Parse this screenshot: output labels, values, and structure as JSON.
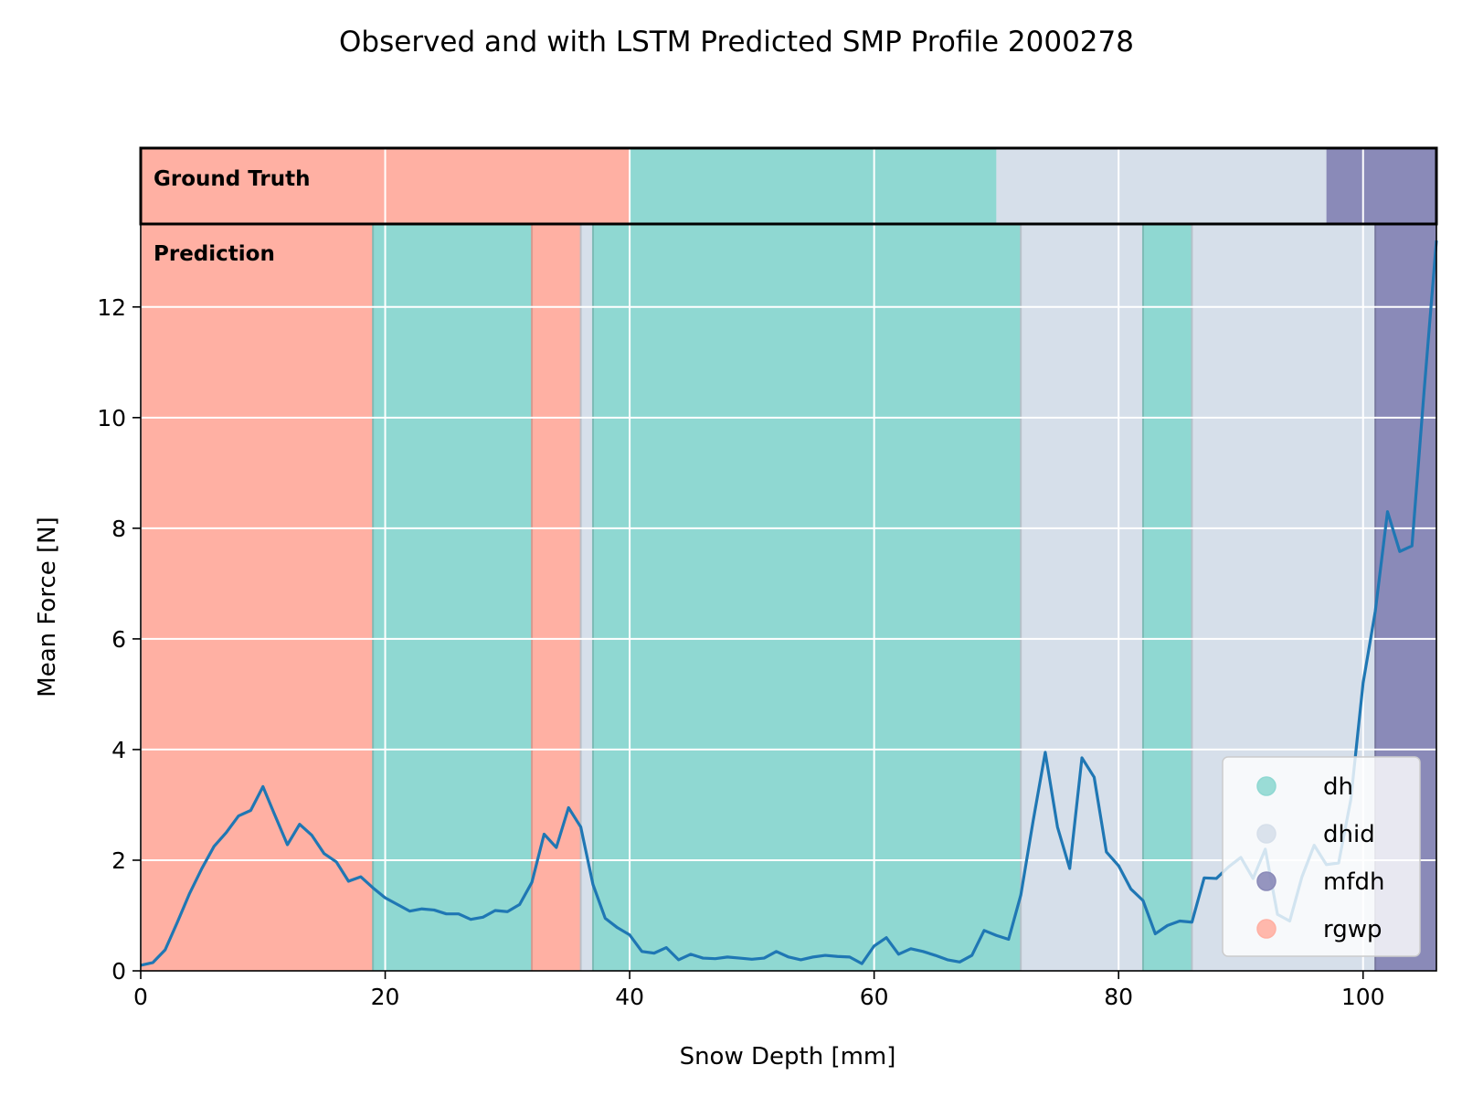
{
  "chart_data": {
    "type": "line",
    "title": "Observed and with LSTM Predicted SMP Profile 2000278",
    "xlabel": "Snow Depth [mm]",
    "ylabel": "Mean Force [N]",
    "xlim": [
      0,
      106
    ],
    "ylim": [
      0,
      13.5
    ],
    "x_ticks": [
      0,
      20,
      40,
      60,
      80,
      100
    ],
    "y_ticks": [
      0,
      2,
      4,
      6,
      8,
      10,
      12
    ],
    "grid": true,
    "band_labels": {
      "ground_truth": "Ground Truth",
      "prediction": "Prediction"
    },
    "classes": [
      {
        "name": "dh",
        "color": "#8fd8d2"
      },
      {
        "name": "dhid",
        "color": "#d6dfea"
      },
      {
        "name": "mfdh",
        "color": "#8a8ab8"
      },
      {
        "name": "rgwp",
        "color": "#ffb0a3"
      }
    ],
    "legend": {
      "entries": [
        "dh",
        "dhid",
        "mfdh",
        "rgwp"
      ],
      "position": "lower-right"
    },
    "ground_truth_segments": [
      {
        "start": 0,
        "end": 40,
        "class": "rgwp"
      },
      {
        "start": 40,
        "end": 70,
        "class": "dh"
      },
      {
        "start": 70,
        "end": 97,
        "class": "dhid"
      },
      {
        "start": 97,
        "end": 106,
        "class": "mfdh"
      }
    ],
    "prediction_segments": [
      {
        "start": 0,
        "end": 19,
        "class": "rgwp"
      },
      {
        "start": 19,
        "end": 32,
        "class": "dh"
      },
      {
        "start": 32,
        "end": 36,
        "class": "rgwp"
      },
      {
        "start": 36,
        "end": 37,
        "class": "dhid"
      },
      {
        "start": 37,
        "end": 72,
        "class": "dh"
      },
      {
        "start": 72,
        "end": 82,
        "class": "dhid"
      },
      {
        "start": 82,
        "end": 86,
        "class": "dh"
      },
      {
        "start": 86,
        "end": 101,
        "class": "dhid"
      },
      {
        "start": 101,
        "end": 106,
        "class": "mfdh"
      }
    ],
    "series": [
      {
        "color": "#1f77b4",
        "x": [
          0,
          1,
          2,
          3,
          4,
          5,
          6,
          7,
          8,
          9,
          10,
          11,
          12,
          13,
          14,
          15,
          16,
          17,
          18,
          19,
          20,
          21,
          22,
          23,
          24,
          25,
          26,
          27,
          28,
          29,
          30,
          31,
          32,
          33,
          34,
          35,
          36,
          37,
          38,
          39,
          40,
          41,
          42,
          43,
          44,
          45,
          46,
          47,
          48,
          49,
          50,
          51,
          52,
          53,
          54,
          55,
          56,
          57,
          58,
          59,
          60,
          61,
          62,
          63,
          64,
          65,
          66,
          67,
          68,
          69,
          70,
          71,
          72,
          73,
          74,
          75,
          76,
          77,
          78,
          79,
          80,
          81,
          82,
          83,
          84,
          85,
          86,
          87,
          88,
          89,
          90,
          91,
          92,
          93,
          94,
          95,
          96,
          97,
          98,
          99,
          100,
          101,
          102,
          103,
          104,
          105,
          106
        ],
        "y": [
          0.1,
          0.15,
          0.38,
          0.88,
          1.4,
          1.85,
          2.25,
          2.5,
          2.8,
          2.9,
          3.33,
          2.8,
          2.28,
          2.65,
          2.45,
          2.12,
          1.97,
          1.62,
          1.7,
          1.5,
          1.32,
          1.2,
          1.08,
          1.12,
          1.1,
          1.03,
          1.03,
          0.93,
          0.97,
          1.09,
          1.07,
          1.2,
          1.6,
          2.47,
          2.23,
          2.95,
          2.6,
          1.56,
          0.95,
          0.78,
          0.65,
          0.35,
          0.32,
          0.42,
          0.2,
          0.3,
          0.23,
          0.22,
          0.25,
          0.23,
          0.21,
          0.23,
          0.35,
          0.25,
          0.2,
          0.25,
          0.28,
          0.26,
          0.25,
          0.13,
          0.45,
          0.6,
          0.3,
          0.4,
          0.35,
          0.28,
          0.2,
          0.16,
          0.28,
          0.73,
          0.64,
          0.57,
          1.37,
          2.7,
          3.95,
          2.6,
          1.85,
          3.85,
          3.5,
          2.15,
          1.9,
          1.48,
          1.27,
          0.67,
          0.82,
          0.9,
          0.88,
          1.68,
          1.67,
          1.88,
          2.05,
          1.67,
          2.2,
          1.02,
          0.9,
          1.7,
          2.27,
          1.92,
          1.95,
          3.1,
          5.2,
          6.5,
          8.3,
          7.58,
          7.68,
          10.5,
          13.2
        ]
      }
    ]
  }
}
